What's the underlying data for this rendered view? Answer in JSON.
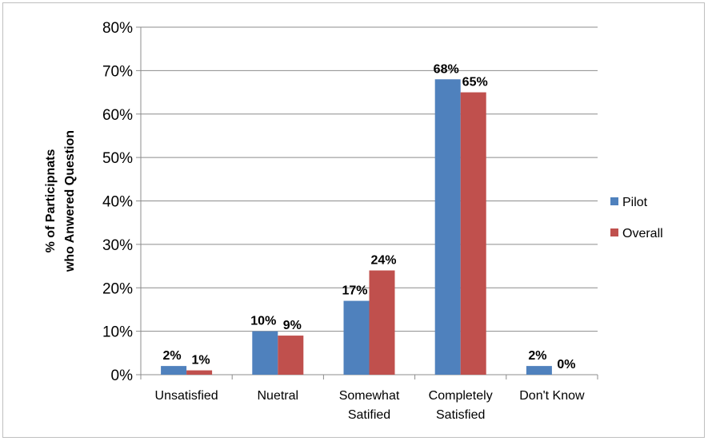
{
  "chart_data": {
    "type": "bar",
    "categories": [
      [
        "Unsatisfied"
      ],
      [
        "Nuetral"
      ],
      [
        "Somewhat",
        "Satified"
      ],
      [
        "Completely",
        "Satisfied"
      ],
      [
        "Don't Know"
      ]
    ],
    "series": [
      {
        "name": "Pilot",
        "color": "#4f81bd",
        "values": [
          2,
          10,
          17,
          68,
          2
        ],
        "labels": [
          "2%",
          "10%",
          "17%",
          "68%",
          "2%"
        ]
      },
      {
        "name": "Overall",
        "color": "#c0504d",
        "values": [
          1,
          9,
          24,
          65,
          0
        ],
        "labels": [
          "1%",
          "9%",
          "24%",
          "65%",
          "0%"
        ]
      }
    ],
    "ylabel_lines": [
      "% of Participnats",
      "who Anwered Question"
    ],
    "ylim": [
      0,
      80
    ],
    "yticks": [
      0,
      10,
      20,
      30,
      40,
      50,
      60,
      70,
      80
    ],
    "ytick_labels": [
      "0%",
      "10%",
      "20%",
      "30%",
      "40%",
      "50%",
      "60%",
      "70%",
      "80%"
    ],
    "grid": true,
    "legend_position": "right"
  }
}
